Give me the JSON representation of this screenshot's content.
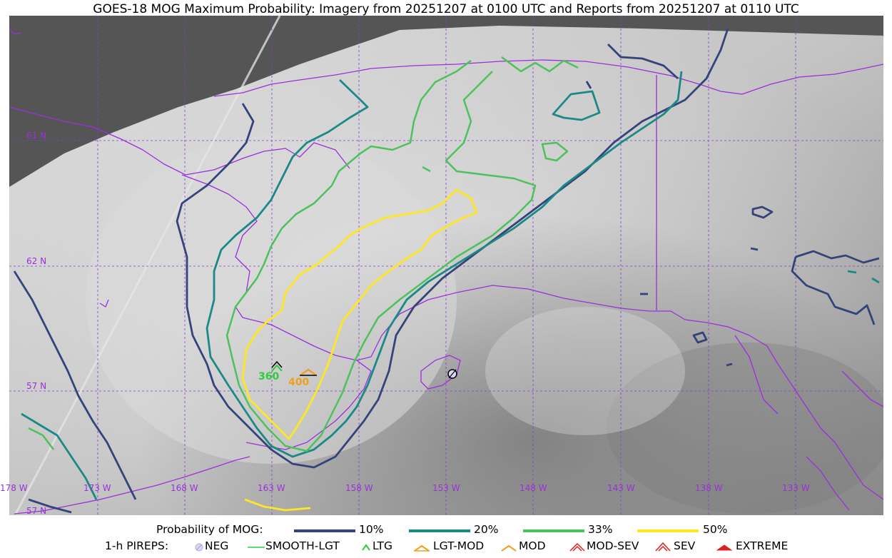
{
  "title": "GOES-18 MOG Maximum Probability: Imagery from 20251207 at 0100 UTC and Reports from 20251207 at 0110 UTC",
  "colors": {
    "contour_10": "#34437a",
    "contour_20": "#1b8a87",
    "contour_33": "#4dc25c",
    "contour_50": "#fde725",
    "coast": "#9b30d9",
    "grid": "#8a3bd0",
    "space": "#555555"
  },
  "latitudes": [
    "61 N",
    "62 N",
    "57 N",
    "57 N"
  ],
  "longitudes": [
    "178 W",
    "173 W",
    "168 W",
    "163 W",
    "158 W",
    "153 W",
    "148 W",
    "143 W",
    "138 W",
    "133 W"
  ],
  "pireps": [
    {
      "type": "LTG",
      "value": "360",
      "color": "#2ecc40"
    },
    {
      "type": "LGT-MOD",
      "value": "400",
      "color": "#f0a020"
    }
  ],
  "legend": {
    "prob_label": "Probability of MOG:",
    "prob_items": [
      {
        "label": "10%",
        "color": "#34437a"
      },
      {
        "label": "20%",
        "color": "#1b8a87"
      },
      {
        "label": "33%",
        "color": "#4dc25c"
      },
      {
        "label": "50%",
        "color": "#fde725"
      }
    ],
    "pirep_label": "1-h PIREPS:",
    "pirep_items": [
      {
        "label": "NEG",
        "icon": "neg-icon"
      },
      {
        "label": "SMOOTH-LGT",
        "icon": "smooth-lgt-icon"
      },
      {
        "label": "LTG",
        "icon": "ltg-chevron-icon"
      },
      {
        "label": "LGT-MOD",
        "icon": "lgt-mod-icon"
      },
      {
        "label": "MOD",
        "icon": "mod-icon"
      },
      {
        "label": "MOD-SEV",
        "icon": "mod-sev-icon"
      },
      {
        "label": "SEV",
        "icon": "sev-icon"
      },
      {
        "label": "EXTREME",
        "icon": "extreme-icon"
      }
    ]
  }
}
